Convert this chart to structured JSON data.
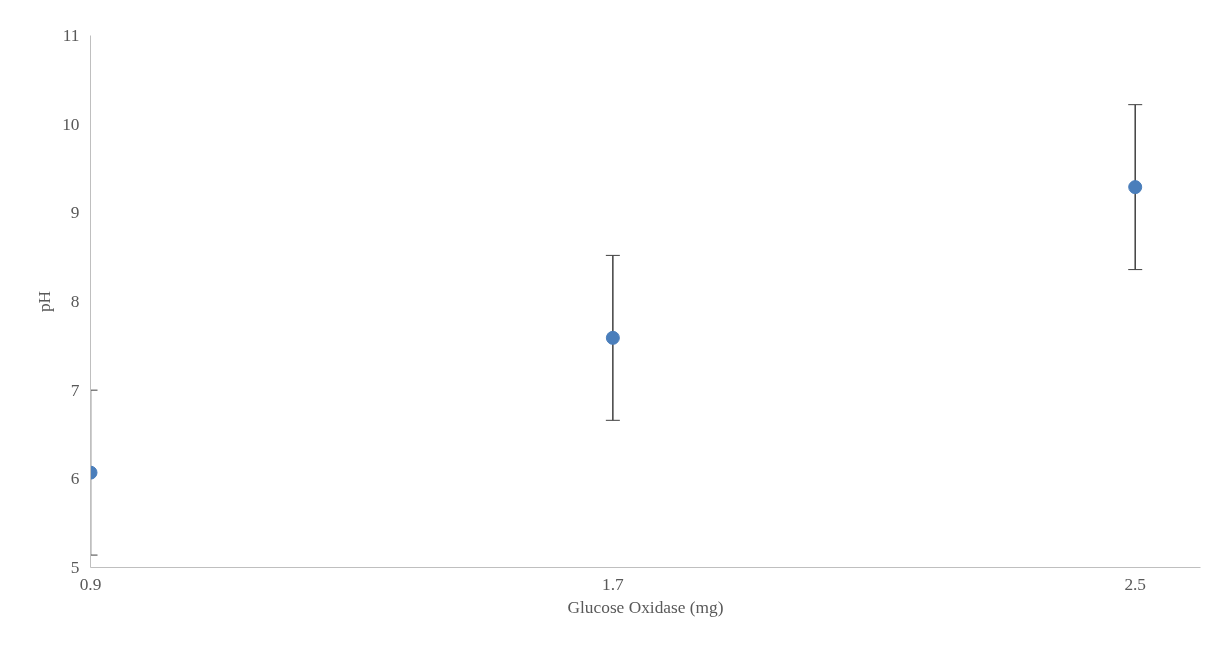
{
  "chart_data": {
    "type": "scatter",
    "xlabel": "Glucose Oxidase (mg)",
    "ylabel": "pH",
    "x": [
      0.9,
      1.7,
      2.5
    ],
    "series": [
      {
        "color": "#4a7ebb",
        "values": [
          6.07,
          7.59,
          9.29
        ],
        "errors": [
          0.93,
          0.93,
          0.93
        ]
      }
    ],
    "xlim": [
      0.9,
      2.6
    ],
    "xticks": [
      0.9,
      1.7,
      2.5
    ],
    "ylim": [
      5,
      11
    ],
    "yticks": [
      5,
      6,
      7,
      8,
      9,
      10,
      11
    ],
    "grid": false,
    "marker": "circle"
  }
}
